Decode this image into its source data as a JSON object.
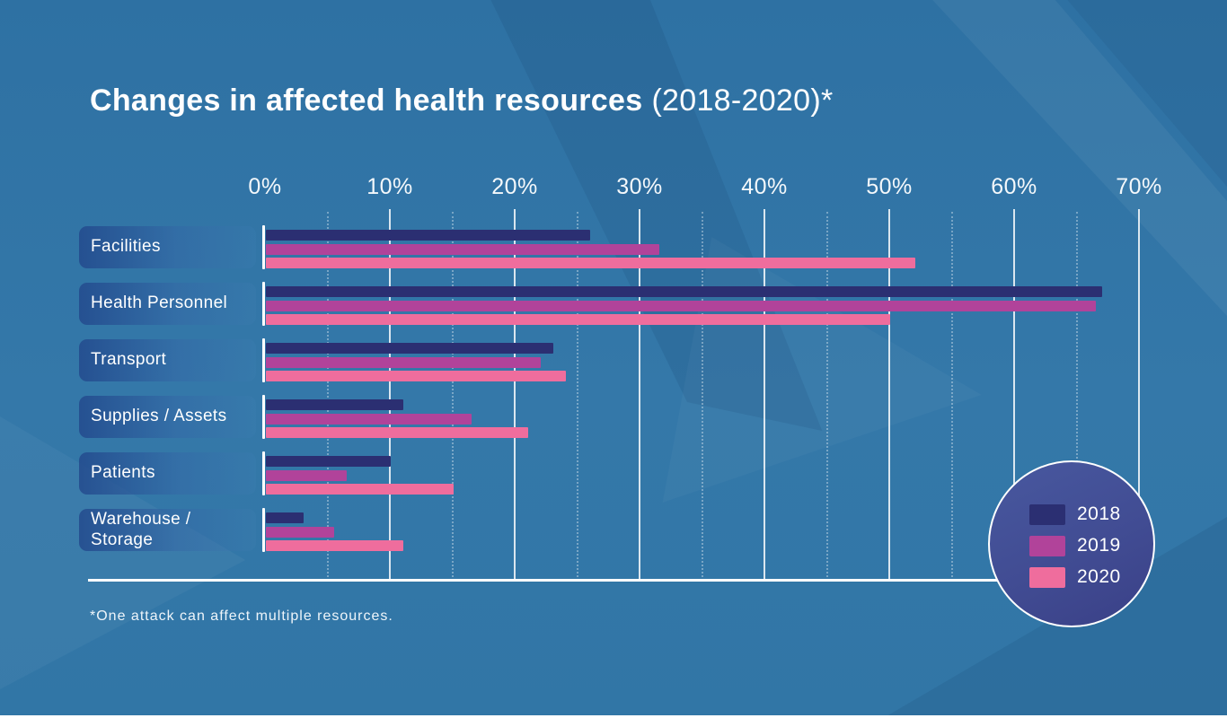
{
  "title": {
    "main": "Changes in affected health resources",
    "suffix": "(2018-2020)*"
  },
  "footnote": "*One attack can affect multiple resources.",
  "colors": {
    "background": "#3377a8",
    "bar_2018": "#2b2f72",
    "bar_2019": "#b1439a",
    "bar_2020": "#ef6d9d",
    "gridline": "#ffffff",
    "text": "#ffffff",
    "legend_circle": "#414c93"
  },
  "chart_data": {
    "type": "bar",
    "orientation": "horizontal",
    "title": "Changes in affected health resources (2018-2020)*",
    "categories": [
      "Facilities",
      "Health Personnel",
      "Transport",
      "Supplies / Assets",
      "Patients",
      "Warehouse /\nStorage"
    ],
    "series": [
      {
        "name": "2018",
        "color": "#2b2f72",
        "values": [
          26,
          67,
          23,
          11,
          10,
          3
        ]
      },
      {
        "name": "2019",
        "color": "#b1439a",
        "values": [
          31.5,
          66.5,
          22,
          16.5,
          6.5,
          5.5
        ]
      },
      {
        "name": "2020",
        "color": "#ef6d9d",
        "values": [
          52,
          50,
          24,
          21,
          15,
          11
        ]
      }
    ],
    "xlabel": "",
    "ylabel": "",
    "xlim": [
      0,
      70
    ],
    "x_tick_step": 10,
    "x_ticks": [
      "0%",
      "10%",
      "20%",
      "30%",
      "40%",
      "50%",
      "60%",
      "70%"
    ],
    "grid": "vertical solid lines at 10% steps, dotted lines at 5% steps",
    "legend_position": "circle bottom-right",
    "annotation": "*One attack can affect multiple resources."
  }
}
